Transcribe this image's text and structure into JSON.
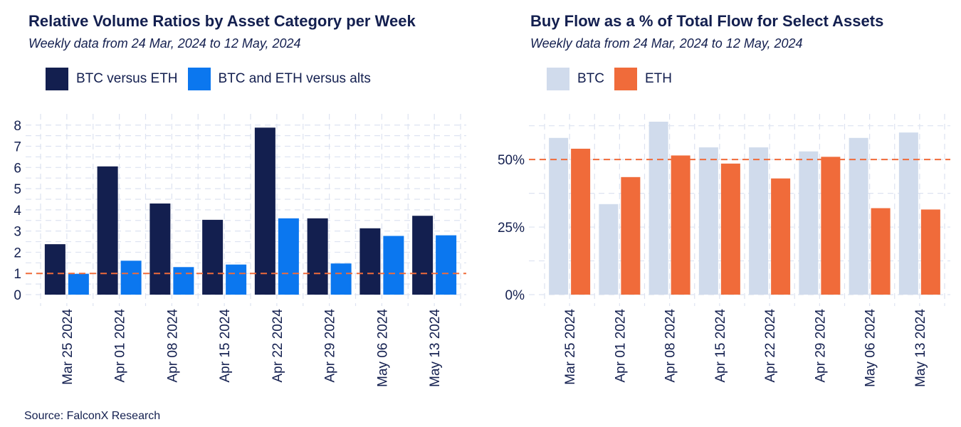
{
  "source": "Source: FalconX Research",
  "chart_data": [
    {
      "type": "bar",
      "title": "Relative Volume Ratios by Asset Category per Week",
      "subtitle": "Weekly data from 24 Mar, 2024 to 12 May, 2024",
      "categories": [
        "Mar 25 2024",
        "Apr 01 2024",
        "Apr 08 2024",
        "Apr 15 2024",
        "Apr 22 2024",
        "Apr 29 2024",
        "May 06 2024",
        "May 13 2024"
      ],
      "series": [
        {
          "name": "BTC versus ETH",
          "color": "#131f4f",
          "values": [
            2.38,
            6.05,
            4.3,
            3.53,
            7.88,
            3.6,
            3.13,
            3.72
          ]
        },
        {
          "name": "BTC and ETH versus alts",
          "color": "#0b77ef",
          "values": [
            0.98,
            1.6,
            1.3,
            1.42,
            3.6,
            1.47,
            2.77,
            2.8
          ]
        }
      ],
      "reference_line": {
        "value": 1,
        "color": "#f06b3a",
        "style": "dashed"
      },
      "yticks": [
        "0",
        "1",
        "2",
        "3",
        "4",
        "5",
        "6",
        "7",
        "8"
      ],
      "ylim": [
        0,
        8.2
      ],
      "legend_position": "top-left",
      "grid": true
    },
    {
      "type": "bar",
      "title": "Buy Flow as a % of Total Flow for Select Assets",
      "subtitle": "Weekly data from 24 Mar, 2024 to 12 May, 2024",
      "categories": [
        "Mar 25 2024",
        "Apr 01 2024",
        "Apr 08 2024",
        "Apr 15 2024",
        "Apr 22 2024",
        "Apr 29 2024",
        "May 06 2024",
        "May 13 2024"
      ],
      "series": [
        {
          "name": "BTC",
          "color": "#d0dbec",
          "values": [
            58.0,
            33.5,
            64.0,
            54.5,
            54.5,
            53.0,
            58.0,
            60.0
          ]
        },
        {
          "name": "ETH",
          "color": "#f06b3a",
          "values": [
            54.0,
            43.5,
            51.5,
            48.5,
            43.0,
            51.0,
            32.0,
            31.5
          ]
        }
      ],
      "reference_line": {
        "value": 50,
        "color": "#f06b3a",
        "style": "dashed"
      },
      "yticks": [
        "0%",
        "25%",
        "50%"
      ],
      "ylim": [
        0,
        64
      ],
      "legend_position": "top-left",
      "grid": true
    }
  ]
}
